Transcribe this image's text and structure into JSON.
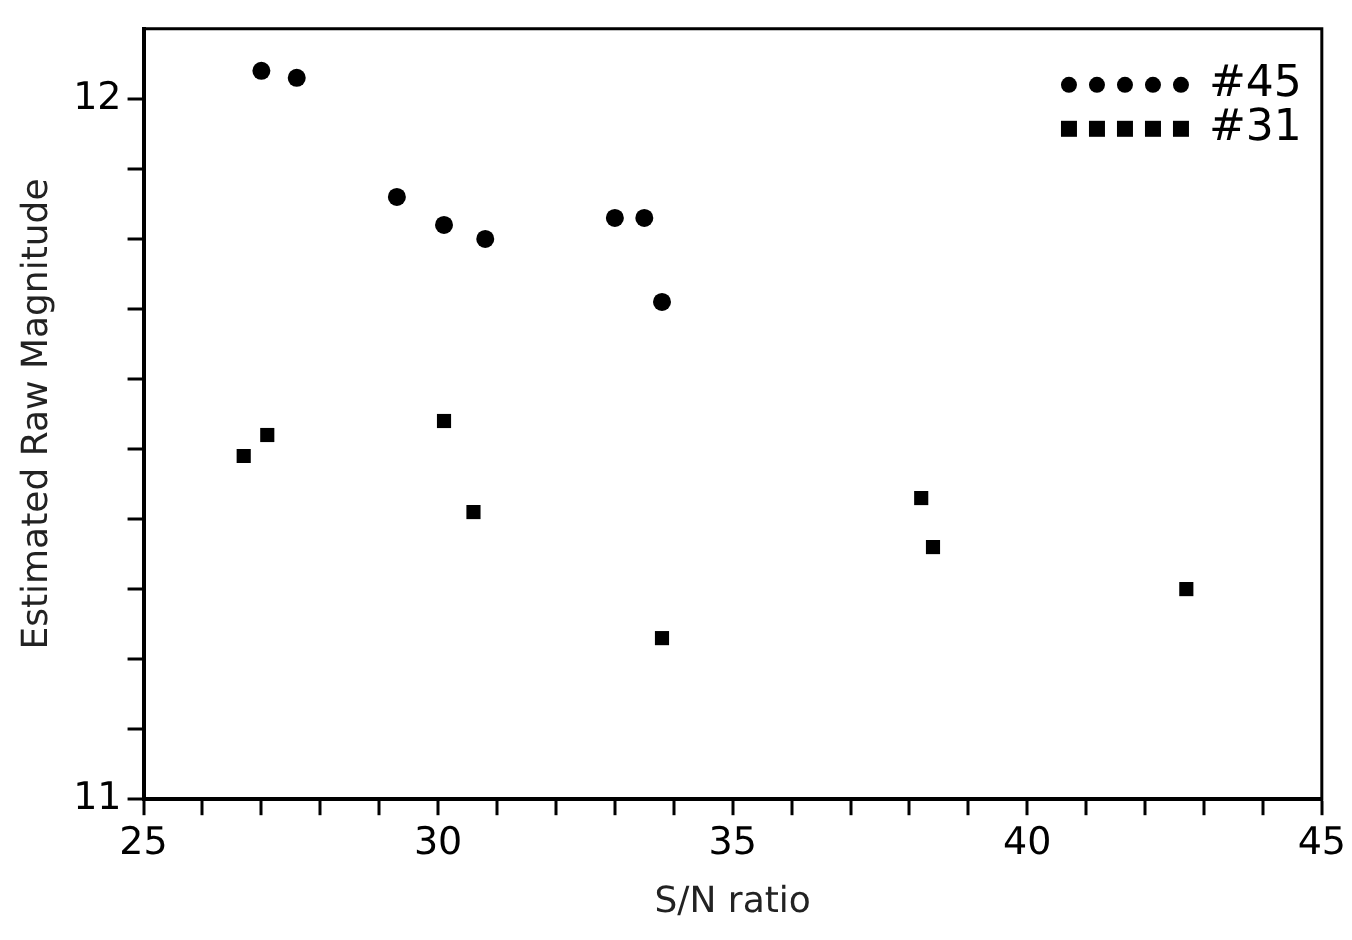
{
  "chart_data": {
    "type": "scatter",
    "xlabel": "S/N ratio",
    "ylabel": "Estimated Raw Magnitude",
    "xlim": [
      25,
      45
    ],
    "xticks": [
      25,
      {
        "value": 26,
        "label": null
      },
      {
        "value": 27,
        "label": null
      },
      {
        "value": 28,
        "label": null
      },
      {
        "value": 29,
        "label": null
      },
      30,
      {
        "value": 31,
        "label": null
      },
      {
        "value": 32,
        "label": null
      },
      {
        "value": 33,
        "label": null
      },
      {
        "value": 34,
        "label": null
      },
      35,
      {
        "value": 36,
        "label": null
      },
      {
        "value": 37,
        "label": null
      },
      {
        "value": 38,
        "label": null
      },
      {
        "value": 39,
        "label": null
      },
      40,
      {
        "value": 41,
        "label": null
      },
      {
        "value": 42,
        "label": null
      },
      {
        "value": 43,
        "label": null
      },
      {
        "value": 44,
        "label": null
      },
      45
    ],
    "ylim": [
      11,
      12.1
    ],
    "yticks": [
      11,
      {
        "value": 11.1,
        "label": null
      },
      {
        "value": 11.2,
        "label": null
      },
      {
        "value": 11.3,
        "label": null
      },
      {
        "value": 11.4,
        "label": null
      },
      {
        "value": 11.5,
        "label": null
      },
      {
        "value": 11.6,
        "label": null
      },
      {
        "value": 11.7,
        "label": null
      },
      {
        "value": 11.8,
        "label": null
      },
      {
        "value": 11.9,
        "label": null
      },
      12
    ],
    "legend": "top right",
    "grid": false,
    "series": [
      {
        "name": "#45",
        "color": "#000000",
        "marker": "circle",
        "x": [
          27.0,
          27.6,
          29.3,
          30.1,
          30.8,
          33.0,
          33.5,
          33.8
        ],
        "values": [
          12.04,
          12.03,
          11.86,
          11.82,
          11.8,
          11.83,
          11.83,
          11.71
        ]
      },
      {
        "name": "#31",
        "color": "#000000",
        "marker": "square",
        "x": [
          26.7,
          27.1,
          30.1,
          30.6,
          33.8,
          38.2,
          38.4,
          42.7
        ],
        "values": [
          11.49,
          11.52,
          11.54,
          11.41,
          11.23,
          11.43,
          11.36,
          11.3
        ]
      }
    ]
  }
}
